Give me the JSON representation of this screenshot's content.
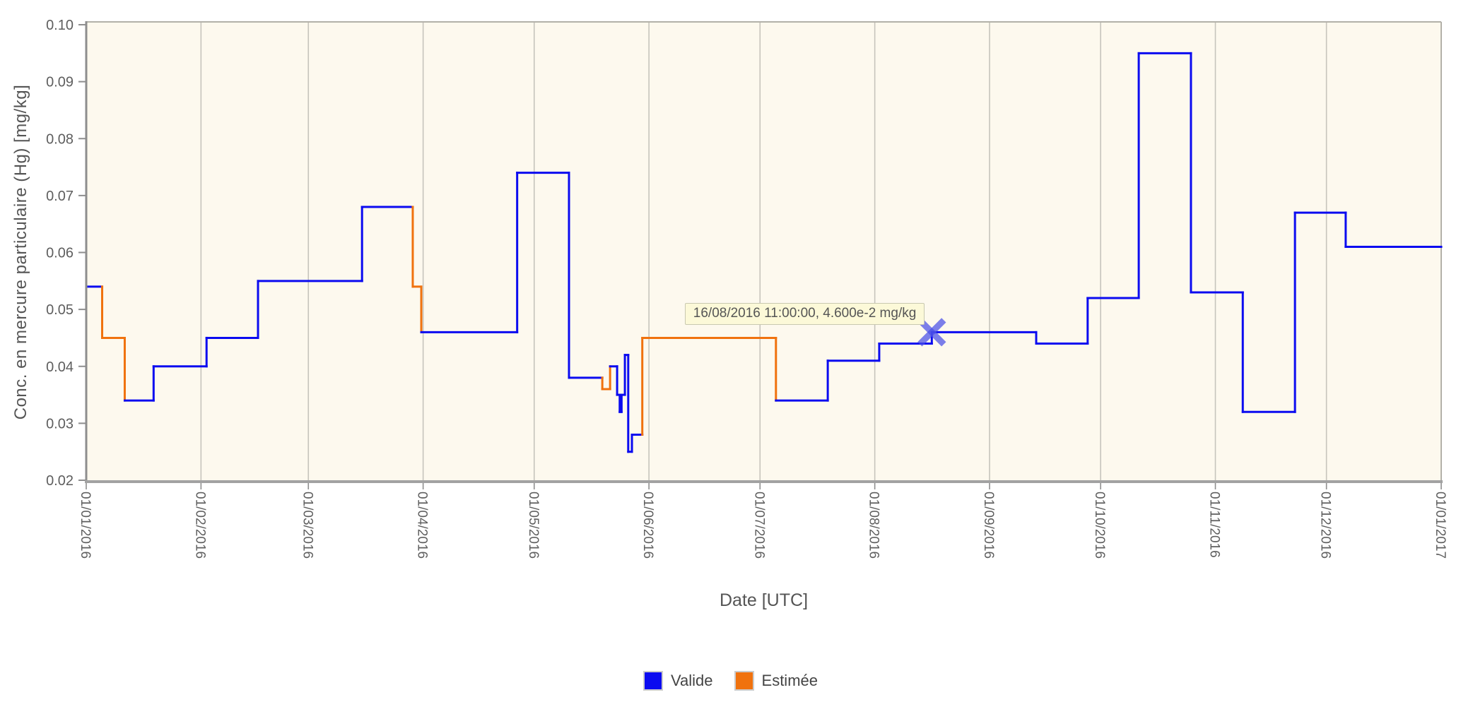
{
  "chart_data": {
    "type": "line",
    "step": "after",
    "x_axis": {
      "label": "Date [UTC]",
      "ticks": [
        {
          "label": "01/01/2016",
          "day": 0
        },
        {
          "label": "01/02/2016",
          "day": 31
        },
        {
          "label": "01/03/2016",
          "day": 60
        },
        {
          "label": "01/04/2016",
          "day": 91
        },
        {
          "label": "01/05/2016",
          "day": 121
        },
        {
          "label": "01/06/2016",
          "day": 152
        },
        {
          "label": "01/07/2016",
          "day": 182
        },
        {
          "label": "01/08/2016",
          "day": 213
        },
        {
          "label": "01/09/2016",
          "day": 244
        },
        {
          "label": "01/10/2016",
          "day": 274
        },
        {
          "label": "01/11/2016",
          "day": 305
        },
        {
          "label": "01/12/2016",
          "day": 335
        },
        {
          "label": "01/01/2017",
          "day": 366
        }
      ],
      "range_days": 366
    },
    "y_axis": {
      "label": "Conc. en mercure particulaire (Hg) [mg/kg]",
      "min": 0.02,
      "max": 0.1,
      "ticks": [
        "0.02",
        "0.03",
        "0.04",
        "0.05",
        "0.06",
        "0.07",
        "0.08",
        "0.09",
        "0.10"
      ]
    },
    "segments": [
      {
        "start": 0,
        "end": 4.3,
        "value": 0.054,
        "status": "valide"
      },
      {
        "start": 4.3,
        "end": 10.4,
        "value": 0.045,
        "status": "estimee"
      },
      {
        "start": 10.4,
        "end": 18.2,
        "value": 0.034,
        "status": "valide"
      },
      {
        "start": 18.2,
        "end": 32.5,
        "value": 0.04,
        "status": "valide"
      },
      {
        "start": 32.5,
        "end": 46.4,
        "value": 0.045,
        "status": "valide"
      },
      {
        "start": 46.4,
        "end": 74.5,
        "value": 0.055,
        "status": "valide"
      },
      {
        "start": 74.5,
        "end": 88.2,
        "value": 0.068,
        "status": "valide"
      },
      {
        "start": 88.2,
        "end": 90.5,
        "value": 0.054,
        "status": "estimee"
      },
      {
        "start": 90.5,
        "end": 116.4,
        "value": 0.046,
        "status": "valide"
      },
      {
        "start": 116.4,
        "end": 130.4,
        "value": 0.074,
        "status": "valide"
      },
      {
        "start": 130.4,
        "end": 139.4,
        "value": 0.038,
        "status": "valide"
      },
      {
        "start": 139.4,
        "end": 141.5,
        "value": 0.036,
        "status": "estimee"
      },
      {
        "start": 141.5,
        "end": 143.4,
        "value": 0.04,
        "status": "valide"
      },
      {
        "start": 143.4,
        "end": 144.1,
        "value": 0.035,
        "status": "valide"
      },
      {
        "start": 144.1,
        "end": 144.6,
        "value": 0.032,
        "status": "valide"
      },
      {
        "start": 144.6,
        "end": 145.5,
        "value": 0.035,
        "status": "valide"
      },
      {
        "start": 145.5,
        "end": 146.4,
        "value": 0.042,
        "status": "valide"
      },
      {
        "start": 146.4,
        "end": 147.4,
        "value": 0.025,
        "status": "valide"
      },
      {
        "start": 147.4,
        "end": 150.2,
        "value": 0.028,
        "status": "valide"
      },
      {
        "start": 150.2,
        "end": 186.3,
        "value": 0.045,
        "status": "estimee"
      },
      {
        "start": 186.3,
        "end": 200.3,
        "value": 0.034,
        "status": "valide"
      },
      {
        "start": 200.3,
        "end": 214.2,
        "value": 0.041,
        "status": "valide"
      },
      {
        "start": 214.2,
        "end": 228.4,
        "value": 0.044,
        "status": "valide"
      },
      {
        "start": 228.4,
        "end": 256.6,
        "value": 0.046,
        "status": "valide"
      },
      {
        "start": 256.6,
        "end": 270.5,
        "value": 0.044,
        "status": "valide"
      },
      {
        "start": 270.5,
        "end": 284.3,
        "value": 0.052,
        "status": "valide"
      },
      {
        "start": 284.3,
        "end": 298.4,
        "value": 0.095,
        "status": "valide"
      },
      {
        "start": 298.4,
        "end": 312.4,
        "value": 0.053,
        "status": "valide"
      },
      {
        "start": 312.4,
        "end": 326.5,
        "value": 0.032,
        "status": "valide"
      },
      {
        "start": 326.5,
        "end": 340.2,
        "value": 0.067,
        "status": "valide"
      },
      {
        "start": 340.2,
        "end": 366,
        "value": 0.061,
        "status": "valide"
      }
    ],
    "hover_point": {
      "day": 228.4,
      "value": 0.046
    },
    "tooltip": {
      "text": "16/08/2016 11:00:00, 4.600e-2 mg/kg"
    },
    "legend": {
      "items": [
        {
          "label": "Valide",
          "status": "valide",
          "color": "#0b0bf0"
        },
        {
          "label": "Estimée",
          "status": "estimee",
          "color": "#f0720e"
        }
      ],
      "position": "bottom"
    },
    "colors": {
      "valide": "#0b0bf0",
      "estimee": "#f0720e",
      "plot_bg": "#fdf9ee",
      "gridline": "#c6c4bc",
      "axis_dark": "#8e8e8e",
      "axis_bottom": "#a2a2a2",
      "axis_light": "#b3b1a9",
      "tick_text": "#5e5e5e",
      "marker": "rgba(72,78,232,0.72)"
    },
    "grid": "vertical-monthly"
  }
}
